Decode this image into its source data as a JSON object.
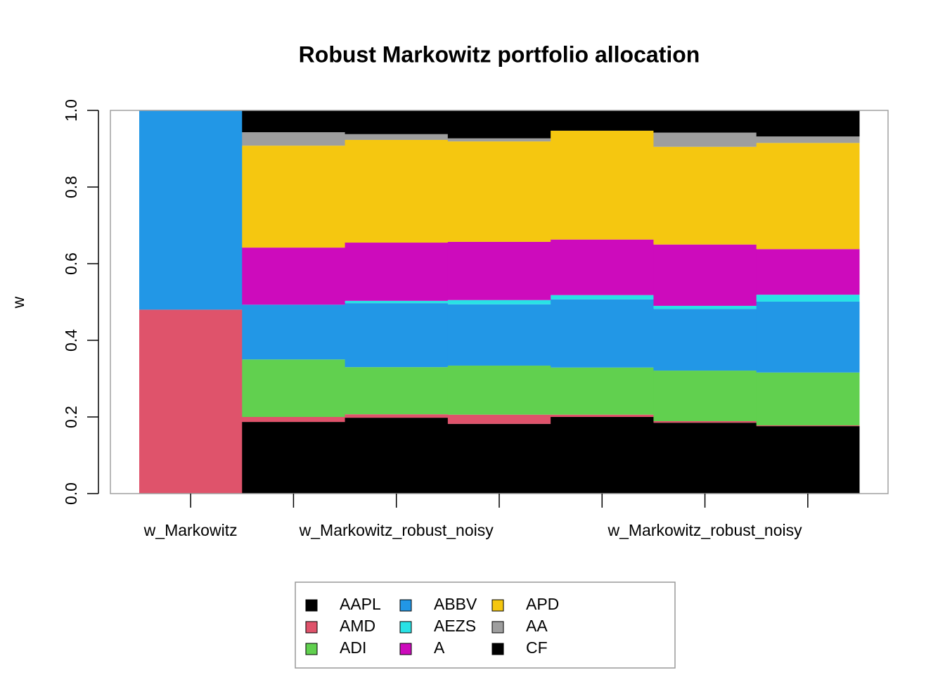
{
  "chart_data": {
    "type": "stacked_bar",
    "title": "Robust Markowitz portfolio allocation",
    "y_label": "w",
    "categories": [
      "w_Markowitz",
      null,
      "w_Markowitz_robust_noisy",
      null,
      null,
      "w_Markowitz_robust_noisy",
      null
    ],
    "series": [
      {
        "name": "AAPL",
        "color": "#000000",
        "values": [
          0,
          0.187,
          0.198,
          0.182,
          0.2,
          0.185,
          0.176
        ]
      },
      {
        "name": "AMD",
        "color": "#DF536B",
        "values": [
          0.48,
          0.013,
          0.009,
          0.024,
          0.006,
          0.004,
          0.002
        ]
      },
      {
        "name": "ADI",
        "color": "#61D04F",
        "values": [
          0,
          0.15,
          0.123,
          0.128,
          0.123,
          0.132,
          0.138
        ]
      },
      {
        "name": "ABBV",
        "color": "#2297E6",
        "values": [
          0.52,
          0.143,
          0.167,
          0.16,
          0.178,
          0.161,
          0.185
        ]
      },
      {
        "name": "AEZS",
        "color": "#28E2E5",
        "values": [
          0,
          0,
          0.006,
          0.011,
          0.011,
          0.008,
          0.018
        ]
      },
      {
        "name": "A",
        "color": "#CD0BBC",
        "values": [
          0,
          0.149,
          0.152,
          0.152,
          0.145,
          0.16,
          0.119
        ]
      },
      {
        "name": "APD",
        "color": "#F5C710",
        "values": [
          0,
          0.266,
          0.268,
          0.262,
          0.284,
          0.255,
          0.277
        ]
      },
      {
        "name": "AA",
        "color": "#9E9E9E",
        "values": [
          0,
          0.035,
          0.015,
          0.008,
          0,
          0.037,
          0.017
        ]
      },
      {
        "name": "CF",
        "color": "#000000",
        "values": [
          0,
          0.057,
          0.062,
          0.073,
          0.053,
          0.058,
          0.068
        ]
      }
    ],
    "ylim": [
      0,
      1
    ],
    "yticks": [
      {
        "value": 0,
        "label": "0.0"
      },
      0.2,
      0.4,
      0.6,
      0.8,
      {
        "value": 1,
        "label": "1.0"
      }
    ]
  }
}
